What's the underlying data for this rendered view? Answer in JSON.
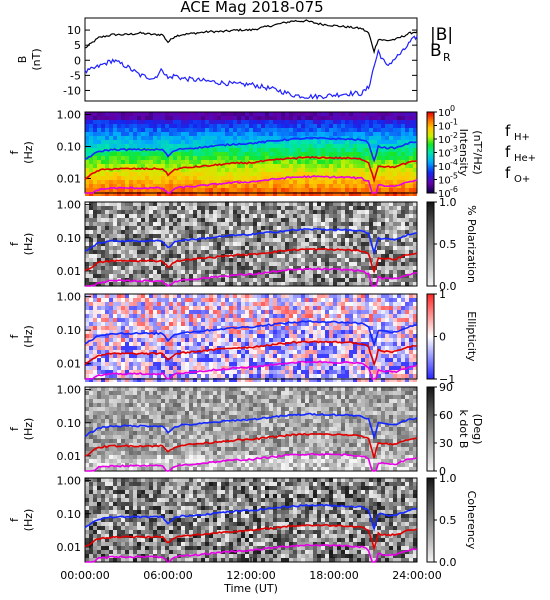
{
  "title": "ACE Mag 2018-075",
  "colors": {
    "B": "#000000",
    "BR": "#2020ff",
    "fH": "#1428ff",
    "fHe": "#e00000",
    "fO": "#e600e6"
  },
  "legend": {
    "B": "|B|",
    "BR_main": "B",
    "BR_sub": "R",
    "fH_main": "f",
    "fH_sub": "H+",
    "fHe_main": "f",
    "fHe_sub": "He+",
    "fO_main": "f",
    "fO_sub": "O+"
  },
  "xaxis": {
    "label": "Time (UT)",
    "range_hours": [
      0,
      24
    ],
    "ticks": [
      "00:00:00",
      "06:00:00",
      "12:00:00",
      "18:00:00",
      "24:00:00"
    ],
    "tick_hours": [
      0,
      6,
      12,
      18,
      24
    ]
  },
  "freq_axis": {
    "label_main": "f",
    "label_unit": "(Hz)",
    "scale": "log",
    "range": [
      0.0035,
      1.2
    ],
    "ticks": [
      "1.00",
      "0.10",
      "0.01"
    ],
    "tick_values": [
      1.0,
      0.1,
      0.01
    ]
  },
  "panels": [
    {
      "id": "mag",
      "ylabel_main": "B",
      "ylabel_unit": "(nT)",
      "range": [
        -13.5,
        14
      ],
      "ticks": [
        "10",
        "5",
        "0",
        "-5",
        "-10"
      ],
      "tick_values": [
        10,
        5,
        0,
        -5,
        -10
      ]
    },
    {
      "id": "intensity",
      "colorscale": "rainbow",
      "cbar_label_a": "Intensity",
      "cbar_label_b": "(nT²/Hz)",
      "cbar_scale": "log",
      "cbar_range": [
        1e-06,
        1
      ],
      "cbar_ticks": [
        {
          "base": "10",
          "exp": "0",
          "value": 1.0
        },
        {
          "base": "10",
          "exp": "-1",
          "value": 0.1
        },
        {
          "base": "10",
          "exp": "-2",
          "value": 0.01
        },
        {
          "base": "10",
          "exp": "-3",
          "value": 0.001
        },
        {
          "base": "10",
          "exp": "-4",
          "value": 0.0001
        },
        {
          "base": "10",
          "exp": "-5",
          "value": 1e-05
        },
        {
          "base": "10",
          "exp": "-6",
          "value": 1e-06
        }
      ]
    },
    {
      "id": "polarization",
      "colorscale": "grey",
      "cbar_label_a": "% Polarization",
      "cbar_label_b": "",
      "cbar_range": [
        0,
        1
      ],
      "cbar_ticks": [
        {
          "label": "1.0",
          "value": 1.0
        },
        {
          "label": "0.5",
          "value": 0.5
        },
        {
          "label": "0.0",
          "value": 0.0
        }
      ]
    },
    {
      "id": "ellipticity",
      "colorscale": "bwr",
      "cbar_label_a": "Ellipticity",
      "cbar_label_b": "",
      "cbar_range": [
        -1,
        1
      ],
      "cbar_ticks": [
        {
          "label": "1",
          "value": 1
        },
        {
          "label": "0",
          "value": 0
        },
        {
          "label": "−1",
          "value": -1
        }
      ]
    },
    {
      "id": "kdotb",
      "colorscale": "grey",
      "cbar_label_a": "k dot B",
      "cbar_label_b": "(Deg)",
      "cbar_range": [
        0,
        90
      ],
      "cbar_ticks": [
        {
          "label": "90",
          "value": 90
        },
        {
          "label": "60",
          "value": 60
        },
        {
          "label": "30",
          "value": 30
        },
        {
          "label": "0",
          "value": 0
        }
      ]
    },
    {
      "id": "coherency",
      "colorscale": "grey",
      "cbar_label_a": "Coherency",
      "cbar_label_b": "",
      "cbar_range": [
        0,
        1
      ],
      "cbar_ticks": [
        {
          "label": "1.0",
          "value": 1.0
        },
        {
          "label": "0.5",
          "value": 0.5
        },
        {
          "label": "0.0",
          "value": 0.0
        }
      ]
    }
  ],
  "chart_data": {
    "type": "line",
    "x_unit": "hours UT",
    "x": [
      0,
      1,
      2,
      3,
      4,
      5,
      5.6,
      6,
      6.5,
      7,
      8,
      9,
      10,
      11,
      12,
      13,
      14,
      15,
      16,
      17,
      18,
      19,
      20,
      20.5,
      20.9,
      21.2,
      21.8,
      22.5,
      23,
      23.5,
      24
    ],
    "series": [
      {
        "name": "|B|",
        "unit": "nT",
        "values": [
          4,
          7.5,
          8.5,
          8.5,
          9,
          8.5,
          8.5,
          6,
          8,
          8.5,
          9,
          9.5,
          9.5,
          10,
          10,
          11,
          12,
          13,
          13,
          12,
          11.5,
          11,
          10.5,
          9,
          3,
          7,
          6.5,
          7,
          8,
          9,
          9.5
        ]
      },
      {
        "name": "B_R",
        "unit": "nT",
        "values": [
          -4,
          -2,
          0,
          -2,
          -5,
          -6,
          -3,
          -6,
          -5,
          -6,
          -6.5,
          -7,
          -7.5,
          -8,
          -8,
          -9,
          -10,
          -11.5,
          -12,
          -12,
          -11.5,
          -11,
          -11,
          -9,
          -2,
          3,
          -2,
          1,
          3,
          6,
          8
        ]
      },
      {
        "name": "f_H+",
        "unit": "Hz",
        "values": [
          0.04,
          0.07,
          0.08,
          0.08,
          0.08,
          0.08,
          0.08,
          0.05,
          0.075,
          0.085,
          0.09,
          0.1,
          0.11,
          0.12,
          0.125,
          0.14,
          0.155,
          0.17,
          0.18,
          0.18,
          0.175,
          0.17,
          0.16,
          0.13,
          0.035,
          0.1,
          0.09,
          0.09,
          0.11,
          0.13,
          0.14
        ]
      },
      {
        "name": "f_He+",
        "unit": "Hz",
        "values": [
          0.01,
          0.018,
          0.02,
          0.02,
          0.02,
          0.02,
          0.02,
          0.013,
          0.019,
          0.021,
          0.023,
          0.025,
          0.028,
          0.03,
          0.031,
          0.035,
          0.039,
          0.043,
          0.045,
          0.045,
          0.044,
          0.043,
          0.04,
          0.032,
          0.009,
          0.025,
          0.023,
          0.023,
          0.028,
          0.032,
          0.035
        ]
      },
      {
        "name": "f_O+",
        "unit": "Hz",
        "values": [
          0.0025,
          0.0045,
          0.005,
          0.005,
          0.005,
          0.005,
          0.005,
          0.0033,
          0.0048,
          0.0053,
          0.0057,
          0.0063,
          0.007,
          0.0075,
          0.0078,
          0.0088,
          0.0098,
          0.0108,
          0.0113,
          0.0113,
          0.011,
          0.0108,
          0.01,
          0.008,
          0.0022,
          0.0063,
          0.0058,
          0.0058,
          0.007,
          0.008,
          0.0088
        ]
      }
    ]
  }
}
